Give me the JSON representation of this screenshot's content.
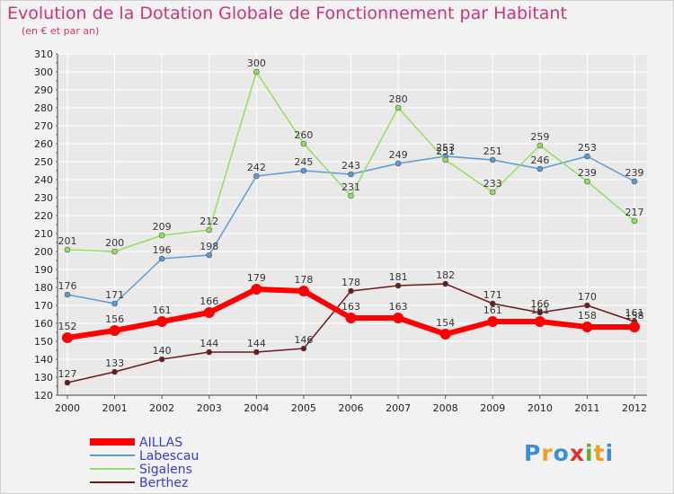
{
  "colors": {
    "title": "#c8357a",
    "grid": "#ffffff",
    "plot_bg": "#e9e9e9",
    "legend_text": "#3b3bd0"
  },
  "logo": {
    "text": "Proxiti",
    "letters": [
      "P",
      "r",
      "o",
      "x",
      "i",
      "t",
      "i"
    ],
    "colors": [
      "#3a8fd8",
      "#f0a020",
      "#3a8fd8",
      "#e03030",
      "#60b030",
      "#f0a020",
      "#3a8fd8"
    ]
  },
  "chart_data": {
    "type": "line",
    "title": "Evolution de la Dotation Globale de Fonctionnement par Habitant",
    "subtitle": "(en € et par an)",
    "xlabel": "",
    "ylabel": "",
    "categories": [
      "2000",
      "2001",
      "2002",
      "2003",
      "2004",
      "2005",
      "2006",
      "2007",
      "2008",
      "2009",
      "2010",
      "2011",
      "2012"
    ],
    "ylim": [
      120,
      310
    ],
    "yticks": [
      120,
      130,
      140,
      150,
      160,
      170,
      180,
      190,
      200,
      210,
      220,
      230,
      240,
      250,
      260,
      270,
      280,
      290,
      300,
      310
    ],
    "grid": true,
    "legend_position": "bottom-left",
    "series": [
      {
        "name": "AILLAS",
        "color": "#ff0000",
        "width": 6,
        "values": [
          152,
          156,
          161,
          166,
          179,
          178,
          163,
          163,
          154,
          161,
          161,
          158,
          158
        ]
      },
      {
        "name": "Labescau",
        "color": "#5b9bd5",
        "width": 1.5,
        "values": [
          176,
          171,
          196,
          198,
          242,
          245,
          243,
          249,
          253,
          251,
          246,
          253,
          239
        ]
      },
      {
        "name": "Sigalens",
        "color": "#90e060",
        "width": 1.5,
        "values": [
          201,
          200,
          209,
          212,
          300,
          260,
          231,
          280,
          251,
          233,
          259,
          239,
          217
        ]
      },
      {
        "name": "Berthez",
        "color": "#6b1a1a",
        "width": 1.5,
        "values": [
          127,
          133,
          140,
          144,
          144,
          146,
          178,
          181,
          182,
          171,
          166,
          170,
          161
        ]
      }
    ]
  }
}
